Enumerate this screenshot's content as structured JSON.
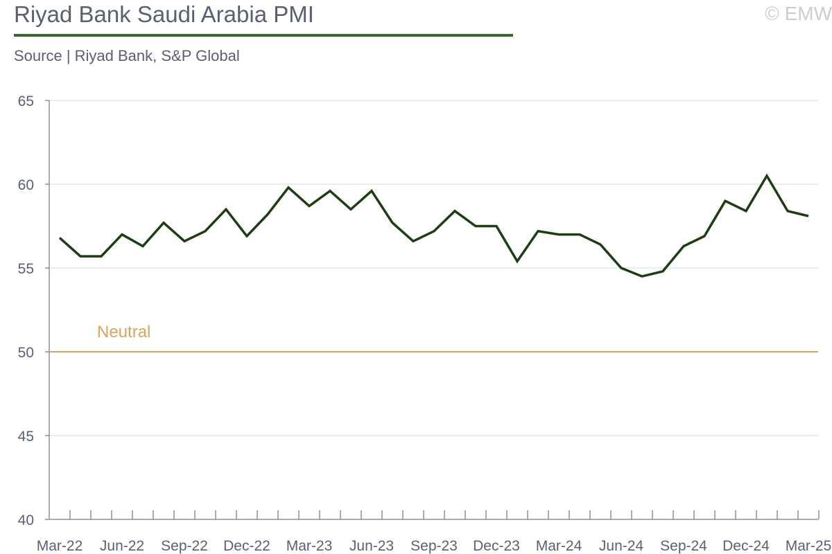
{
  "header": {
    "title": "Riyad Bank Saudi Arabia PMI",
    "subtitle": "Source | Riyad Bank, S&P Global",
    "copyright": "© EMW"
  },
  "colors": {
    "series": "#1e3d12",
    "neutral": "#d9a55a",
    "grid": "#dde7ef",
    "axis": "#8a8f9c",
    "title_rule": "#2e6b2e"
  },
  "chart_data": {
    "type": "line",
    "title": "Riyad Bank Saudi Arabia PMI",
    "xlabel": "",
    "ylabel": "",
    "ylim": [
      40,
      65
    ],
    "yticks": [
      40,
      45,
      50,
      55,
      60,
      65
    ],
    "grid": true,
    "x_tick_labels": [
      "Mar-22",
      "Jun-22",
      "Sep-22",
      "Dec-22",
      "Mar-23",
      "Jun-23",
      "Sep-23",
      "Dec-23",
      "Mar-24",
      "Jun-24",
      "Sep-24",
      "Dec-24",
      "Mar-25"
    ],
    "x": [
      "Mar-22",
      "Apr-22",
      "May-22",
      "Jun-22",
      "Jul-22",
      "Aug-22",
      "Sep-22",
      "Oct-22",
      "Nov-22",
      "Dec-22",
      "Jan-23",
      "Feb-23",
      "Mar-23",
      "Apr-23",
      "May-23",
      "Jun-23",
      "Jul-23",
      "Aug-23",
      "Sep-23",
      "Oct-23",
      "Nov-23",
      "Dec-23",
      "Jan-24",
      "Feb-24",
      "Mar-24",
      "Apr-24",
      "May-24",
      "Jun-24",
      "Jul-24",
      "Aug-24",
      "Sep-24",
      "Oct-24",
      "Nov-24",
      "Dec-24",
      "Jan-25",
      "Feb-25",
      "Mar-25"
    ],
    "series": [
      {
        "name": "",
        "values": [
          56.8,
          55.7,
          55.7,
          57.0,
          56.3,
          57.7,
          56.6,
          57.2,
          58.5,
          56.9,
          58.2,
          59.8,
          58.7,
          59.6,
          58.5,
          59.6,
          57.7,
          56.6,
          57.2,
          58.4,
          57.5,
          57.5,
          55.4,
          57.2,
          57.0,
          57.0,
          56.4,
          55.0,
          54.5,
          54.8,
          56.3,
          56.9,
          59.0,
          58.4,
          60.5,
          58.4,
          58.1
        ]
      }
    ],
    "reference_lines": [
      {
        "label": "Neutral",
        "value": 50
      }
    ]
  }
}
